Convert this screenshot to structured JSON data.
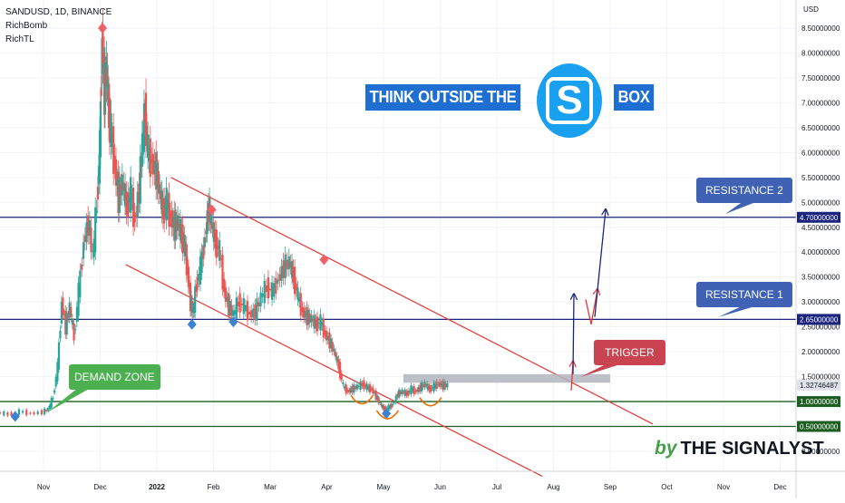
{
  "header": {
    "symbol_line": "SANDUSD, 1D, BINANCE",
    "indicator_1": "RichBomb",
    "indicator_2": "RichTL"
  },
  "axis_currency": "USD",
  "headline": {
    "part_1": "THINK OUTSIDE THE",
    "logo_letter": "S",
    "part_2": "BOX"
  },
  "callouts": {
    "resistance_2": "RESISTANCE 2",
    "resistance_1": "RESISTANCE 1",
    "trigger": "TRIGGER",
    "demand_zone": "DEMAND ZONE"
  },
  "brand": {
    "by": "by",
    "name": "THE SIGNALYST"
  },
  "chart_data": {
    "type": "line",
    "title": "SANDUSD, 1D, BINANCE",
    "ylim": [
      0,
      8.6
    ],
    "y_ticks": [
      "0.00000000",
      "0.50000000",
      "1.00000000",
      "1.50000000",
      "2.00000000",
      "2.50000000",
      "3.00000000",
      "3.50000000",
      "4.00000000",
      "4.50000000",
      "5.00000000",
      "5.50000000",
      "6.00000000",
      "6.50000000",
      "7.00000000",
      "7.50000000",
      "8.00000000",
      "8.50000000"
    ],
    "y_tick_values": [
      0,
      0.5,
      1,
      1.5,
      2,
      2.5,
      3,
      3.5,
      4,
      4.5,
      5,
      5.5,
      6,
      6.5,
      7,
      7.5,
      8,
      8.5
    ],
    "x_ticks": [
      "Nov",
      "Dec",
      "2022",
      "Feb",
      "Mar",
      "Apr",
      "May",
      "Jun",
      "Jul",
      "Aug",
      "Sep",
      "Oct",
      "Nov",
      "Dec"
    ],
    "x_tick_months": [
      0,
      1,
      2,
      3,
      4,
      5,
      6,
      7,
      8,
      9,
      10,
      11,
      12,
      13
    ],
    "current_price": "1.32746487",
    "levels": [
      {
        "name": "Resistance 2",
        "value": 4.7,
        "label": "4.70000000",
        "color": "#1a237e"
      },
      {
        "name": "Resistance 1",
        "value": 2.65,
        "label": "2.65000000",
        "color": "#1a237e"
      },
      {
        "name": "Support",
        "value": 1.0,
        "label": "1.00000000",
        "color": "#1b5e20"
      },
      {
        "name": "Demand",
        "value": 0.5,
        "label": "0.50000000",
        "color": "#1b5e20"
      }
    ],
    "trigger_zone": {
      "from_month": 6.35,
      "to_month": 10.0,
      "value": 1.5
    },
    "series": [
      {
        "points": [
          [
            -0.8,
            0.78
          ],
          [
            -0.6,
            0.74
          ],
          [
            -0.4,
            0.8
          ],
          [
            -0.2,
            0.76
          ],
          [
            0.0,
            0.79
          ],
          [
            0.1,
            0.85
          ],
          [
            0.18,
            1.1
          ],
          [
            0.26,
            1.7
          ],
          [
            0.33,
            3.0
          ],
          [
            0.4,
            2.5
          ],
          [
            0.47,
            2.9
          ],
          [
            0.55,
            2.3
          ],
          [
            0.63,
            3.2
          ],
          [
            0.72,
            4.2
          ],
          [
            0.8,
            4.6
          ],
          [
            0.88,
            3.9
          ],
          [
            0.95,
            5.0
          ],
          [
            1.0,
            6.1
          ],
          [
            1.04,
            8.3
          ],
          [
            1.08,
            7.2
          ],
          [
            1.12,
            7.7
          ],
          [
            1.16,
            6.7
          ],
          [
            1.2,
            6.4
          ],
          [
            1.27,
            5.7
          ],
          [
            1.33,
            5.1
          ],
          [
            1.4,
            5.4
          ],
          [
            1.48,
            4.9
          ],
          [
            1.55,
            5.2
          ],
          [
            1.62,
            4.6
          ],
          [
            1.7,
            5.3
          ],
          [
            1.75,
            6.2
          ],
          [
            1.8,
            6.8
          ],
          [
            1.85,
            6.0
          ],
          [
            1.92,
            5.8
          ],
          [
            2.0,
            5.6
          ],
          [
            2.06,
            5.2
          ],
          [
            2.12,
            4.8
          ],
          [
            2.18,
            5.0
          ],
          [
            2.25,
            4.7
          ],
          [
            2.32,
            4.5
          ],
          [
            2.38,
            4.6
          ],
          [
            2.45,
            4.3
          ],
          [
            2.5,
            4.1
          ],
          [
            2.55,
            3.6
          ],
          [
            2.6,
            3.0
          ],
          [
            2.65,
            2.8
          ],
          [
            2.7,
            3.3
          ],
          [
            2.78,
            3.7
          ],
          [
            2.86,
            4.3
          ],
          [
            2.92,
            4.9
          ],
          [
            2.97,
            4.6
          ],
          [
            3.04,
            4.2
          ],
          [
            3.12,
            4.0
          ],
          [
            3.2,
            3.2
          ],
          [
            3.28,
            2.9
          ],
          [
            3.36,
            2.75
          ],
          [
            3.45,
            3.0
          ],
          [
            3.55,
            2.9
          ],
          [
            3.65,
            2.75
          ],
          [
            3.75,
            2.8
          ],
          [
            3.85,
            3.1
          ],
          [
            3.95,
            3.3
          ],
          [
            4.05,
            3.2
          ],
          [
            4.15,
            3.45
          ],
          [
            4.25,
            3.7
          ],
          [
            4.35,
            3.8
          ],
          [
            4.42,
            3.5
          ],
          [
            4.5,
            3.1
          ],
          [
            4.58,
            2.8
          ],
          [
            4.66,
            2.7
          ],
          [
            4.74,
            2.65
          ],
          [
            4.82,
            2.55
          ],
          [
            4.9,
            2.6
          ],
          [
            4.98,
            2.35
          ],
          [
            5.06,
            2.2
          ],
          [
            5.14,
            2.0
          ],
          [
            5.22,
            1.7
          ],
          [
            5.3,
            1.3
          ],
          [
            5.38,
            1.2
          ],
          [
            5.46,
            1.25
          ],
          [
            5.55,
            1.3
          ],
          [
            5.64,
            1.35
          ],
          [
            5.72,
            1.28
          ],
          [
            5.8,
            1.25
          ],
          [
            5.88,
            1.1
          ],
          [
            5.95,
            0.95
          ],
          [
            6.02,
            0.85
          ],
          [
            6.1,
            0.88
          ],
          [
            6.18,
            0.95
          ],
          [
            6.26,
            1.15
          ],
          [
            6.34,
            1.2
          ],
          [
            6.42,
            1.15
          ],
          [
            6.5,
            1.25
          ],
          [
            6.58,
            1.2
          ],
          [
            6.66,
            1.28
          ],
          [
            6.74,
            1.35
          ],
          [
            6.82,
            1.25
          ],
          [
            6.9,
            1.3
          ],
          [
            6.98,
            1.35
          ],
          [
            7.06,
            1.32
          ],
          [
            7.14,
            1.33
          ]
        ]
      }
    ],
    "grid": true
  },
  "colors": {
    "background": "#ffffff",
    "candle_up": "#26a69a",
    "candle_down": "#ef5350",
    "trend_channel": "#e53935",
    "resistance_line": "#1a237e",
    "support_line": "#1b5e20",
    "callout_blue": "#3f62b5",
    "callout_red": "#c94450",
    "callout_green": "#4caf50",
    "headline_blue": "#1e6fd1",
    "logo_blue": "#1aa0f0"
  }
}
